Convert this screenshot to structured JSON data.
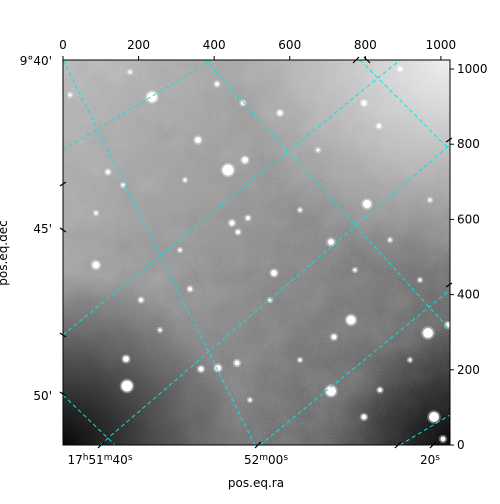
{
  "figure": {
    "x_axis_label": "pos.eq.ra",
    "y_axis_label": "pos.eq.dec",
    "grid_color": "#00e5e5",
    "frame_color": "#000000",
    "pixel_axis_bottom": {
      "range": [
        0,
        1024
      ],
      "ticks": [
        0,
        200,
        400,
        600,
        800,
        1000
      ]
    },
    "pixel_axis_right": {
      "range": [
        0,
        1024
      ],
      "ticks": [
        0,
        200,
        400,
        600,
        800,
        1000
      ]
    },
    "dec_ticks": [
      {
        "deg": "9",
        "min": "40",
        "sep": "'"
      },
      {
        "deg": "",
        "min": "45",
        "sep": "'"
      },
      {
        "deg": "",
        "min": "50",
        "sep": "'"
      }
    ],
    "ra_ticks": [
      {
        "h": "17",
        "m": "51",
        "s": "40"
      },
      {
        "h": "",
        "m": "52",
        "s": "00"
      },
      {
        "h": "",
        "m": "",
        "s": "20"
      }
    ],
    "ra_units": {
      "h": "h",
      "m": "m",
      "s": "s"
    }
  }
}
